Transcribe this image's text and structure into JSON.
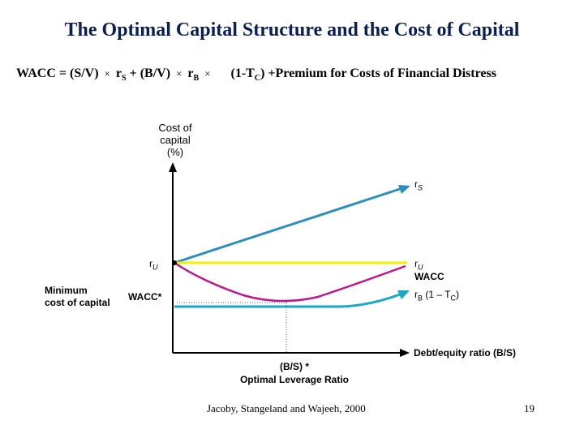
{
  "title": "The Optimal Capital Structure and the Cost of Capital",
  "formula": {
    "part1": "WACC = (S/V)",
    "sep_glyph": "×",
    "part2": "r",
    "part2_sub": "S",
    "part3": "+ (B/V)",
    "part4": "r",
    "part4_sub": "B",
    "part5": "(1-T",
    "part5_sub": "C",
    "part6": ") +Premium for Costs of Financial Distress"
  },
  "chart_data": {
    "type": "line",
    "ylabel_line1": "Cost of",
    "ylabel_line2": "capital",
    "ylabel_line3": "(%)",
    "xlabel": "Debt/equity ratio (B/S)",
    "series": [
      {
        "name": "rS",
        "color": "#2a8fc0"
      },
      {
        "name": "rU",
        "color": "#f0f000"
      },
      {
        "name": "WACC",
        "color": "#c0148c"
      },
      {
        "name": "rB (1 – TC)",
        "color": "#17a8c8"
      }
    ],
    "labels": {
      "rs_label": "r",
      "rs_sub": "S",
      "ru_right": "r",
      "ru_right_sub": "U",
      "ru_left": "r",
      "ru_left_sub": "U",
      "wacc_right": "WACC",
      "rb_label_r": "r",
      "rb_label_sub": "B",
      "rb_label_rest": " (1 – T",
      "rb_label_tc_sub": "C",
      "rb_label_close": ")",
      "min_line1": "Minimum",
      "min_line2": "cost of capital",
      "wacc_star": "WACC*",
      "optimal_line1": "(B/S) *",
      "optimal_line2": "Optimal Leverage Ratio"
    }
  },
  "footer": {
    "citation": "Jacoby, Stangeland and Wajeeh, 2000",
    "page_number": "19"
  }
}
